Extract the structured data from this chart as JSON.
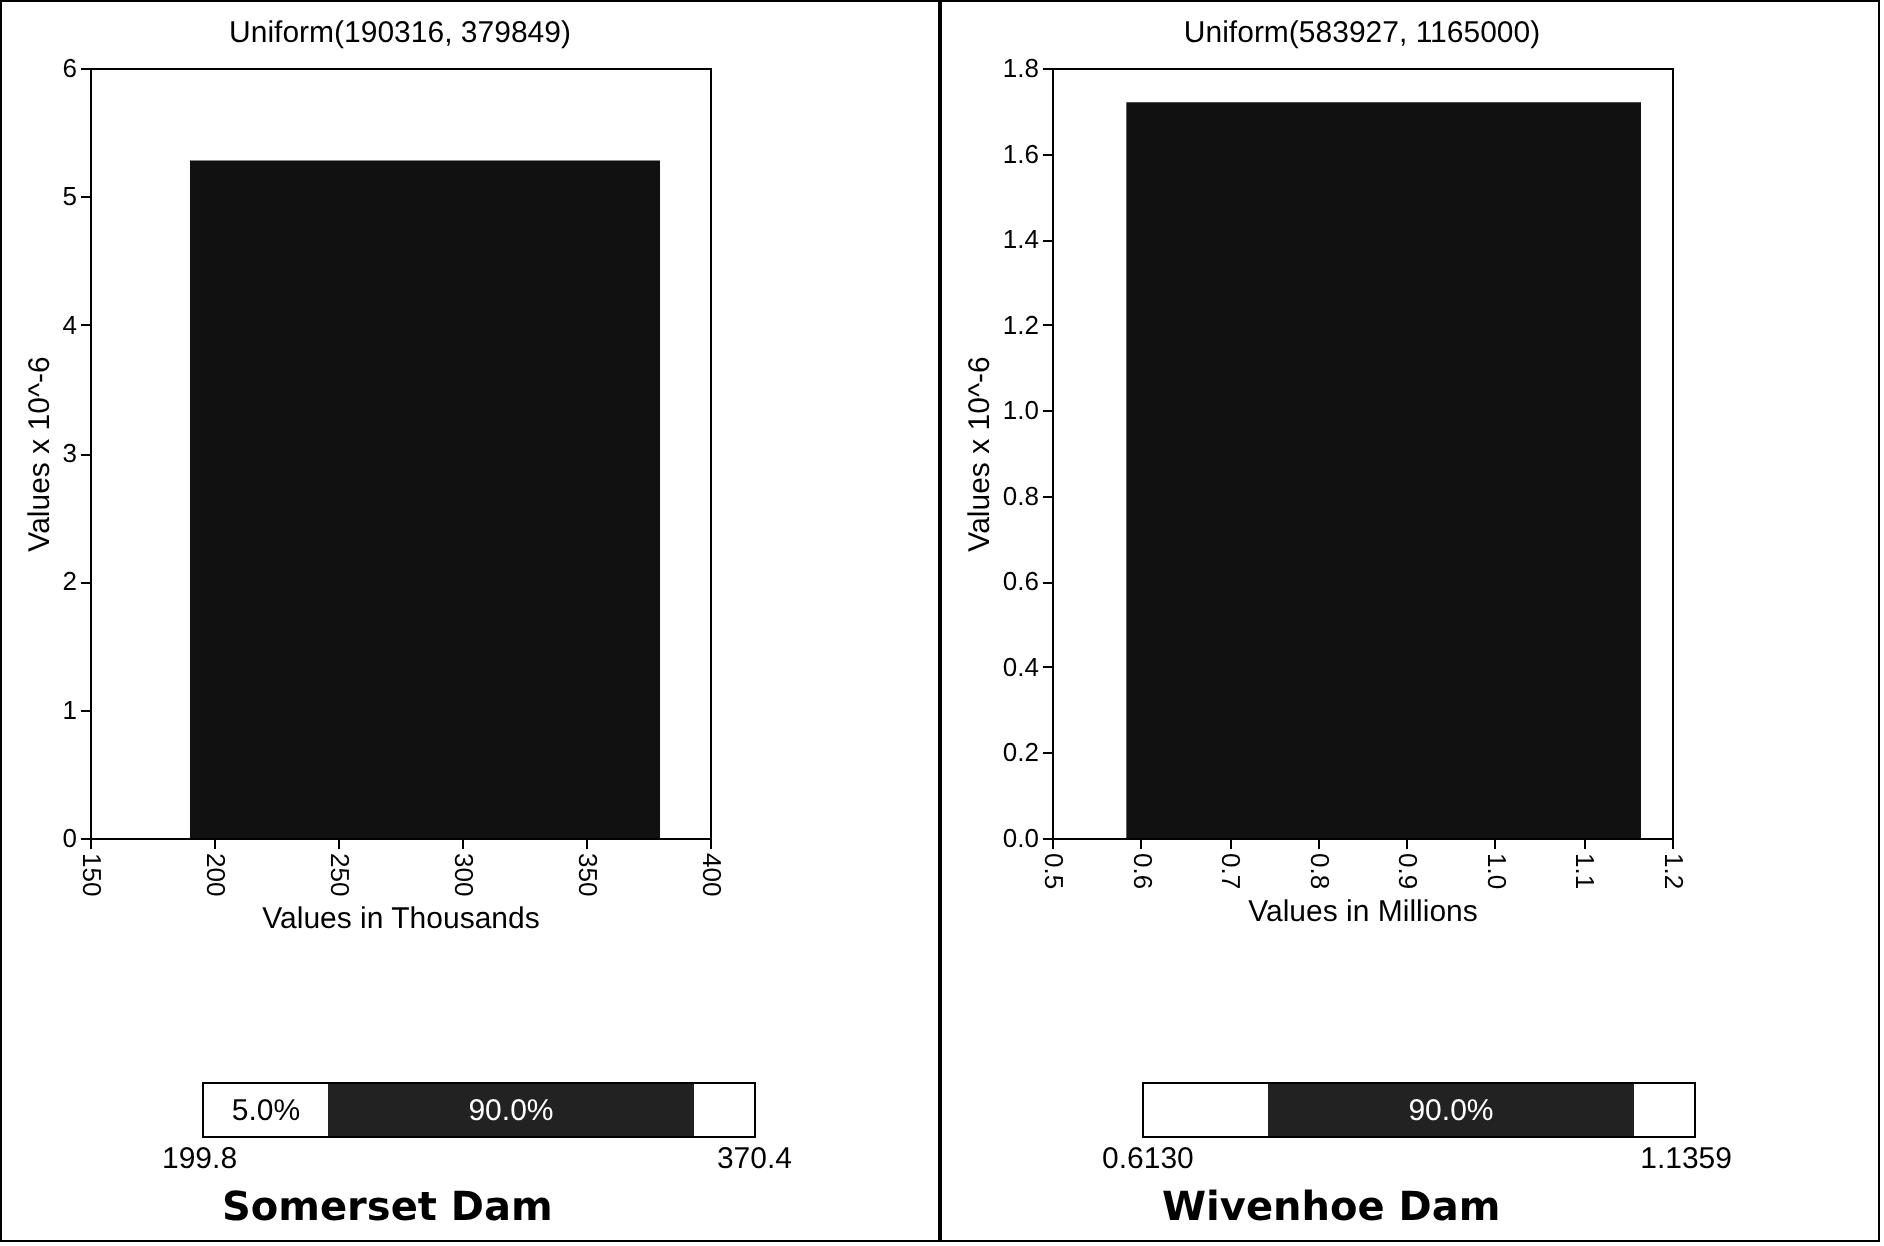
{
  "chart_data": [
    {
      "type": "histogram",
      "title": "Uniform(190316, 379849)",
      "xlabel": "Values in Thousands",
      "ylabel": "Values x 10^-6",
      "bins": [
        190.316,
        379.849
      ],
      "values": [
        5.28
      ],
      "color": "#111111",
      "xlim": [
        150,
        400
      ],
      "xticks": [
        150,
        200,
        250,
        300,
        350,
        400
      ],
      "ylim": [
        0,
        6
      ],
      "yticks": [
        0,
        1,
        2,
        3,
        4,
        5,
        6
      ],
      "grid": false,
      "annotations": [
        "5.0%",
        "90.0%",
        "199.8",
        "370.4",
        "Somerset Dam"
      ]
    },
    {
      "type": "histogram",
      "title": "Uniform(583927, 1165000)",
      "xlabel": "Values in Millions",
      "ylabel": "Values x 10^-6",
      "bins": [
        0.583927,
        1.165
      ],
      "values": [
        1.72
      ],
      "color": "#111111",
      "xlim": [
        0.5,
        1.2
      ],
      "xticks": [
        0.5,
        0.6,
        0.7,
        0.8,
        0.9,
        {
          "value": 1.0,
          "label": "1.0"
        },
        1.1,
        1.2
      ],
      "ylim": [
        0,
        1.8
      ],
      "yticks": [
        {
          "value": 0,
          "label": "0.0"
        },
        0.2,
        0.4,
        0.6,
        0.8,
        {
          "value": 1.0,
          "label": "1.0"
        },
        1.2,
        1.4,
        1.6,
        1.8
      ],
      "grid": false,
      "annotations": [
        "90.0%",
        "0.6130",
        "1.1359",
        "Wivenhoe Dam"
      ]
    }
  ]
}
